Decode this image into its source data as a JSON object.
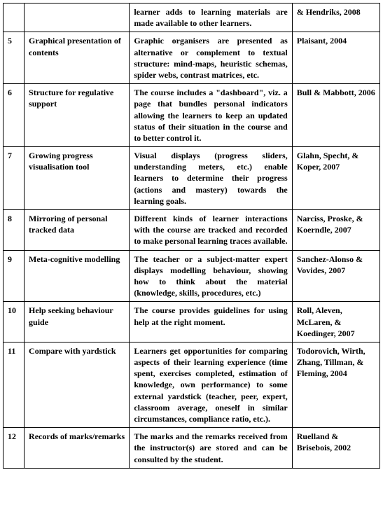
{
  "rows": [
    {
      "num": "",
      "name": "",
      "desc": "learner adds to learning materials are made available to other learners.",
      "ref": "& Hendriks, 2008"
    },
    {
      "num": "5",
      "name": "Graphical presentation of contents",
      "desc": "Graphic organisers are presented as alternative or complement to textual structure: mind-maps, heuristic schemas, spider webs, contrast matrices, etc.",
      "ref": "Plaisant, 2004"
    },
    {
      "num": "6",
      "name": "Structure for regulative support",
      "desc": "The course includes a \"dashboard\", viz. a page that bundles personal indicators allowing the learners to keep an updated status of their situation in the course and to better control it.",
      "ref": "Bull & Mabbott, 2006"
    },
    {
      "num": "7",
      "name": "Growing progress visualisation tool",
      "desc": "Visual displays (progress sliders, understanding meters, etc.) enable learners to determine their progress (actions and mastery) towards the learning goals.",
      "ref": "Glahn, Specht, & Koper, 2007"
    },
    {
      "num": "8",
      "name": "Mirroring of personal tracked data",
      "desc": "Different kinds of learner interactions with the course are tracked and recorded to make personal learning traces available.",
      "ref": "Narciss, Proske, & Koerndle, 2007"
    },
    {
      "num": "9",
      "name": "Meta-cognitive modelling",
      "desc": "The teacher or a subject-matter expert displays modelling behaviour, showing how to think about the material (knowledge, skills, procedures, etc.)",
      "ref": "Sanchez-Alonso & Vovides, 2007"
    },
    {
      "num": "10",
      "name": "Help seeking behaviour guide",
      "desc": "The course provides guidelines for using help at the right moment.",
      "ref": "Roll, Aleven, McLaren, & Koedinger, 2007"
    },
    {
      "num": "11",
      "name": "Compare with yardstick",
      "desc": "Learners get opportunities for comparing aspects of their learning experience (time spent, exercises completed, estimation of knowledge, own performance) to some external yardstick (teacher, peer, expert, classroom average, oneself in similar circumstances, compliance ratio, etc.).",
      "ref": "Todorovich, Wirth, Zhang, Tillman, & Fleming, 2004"
    },
    {
      "num": "12",
      "name": "Records of marks/remarks",
      "desc": "The marks and the remarks received from the instructor(s) are stored and can be consulted by the student.",
      "ref": "Ruelland & Brisebois, 2002"
    }
  ]
}
